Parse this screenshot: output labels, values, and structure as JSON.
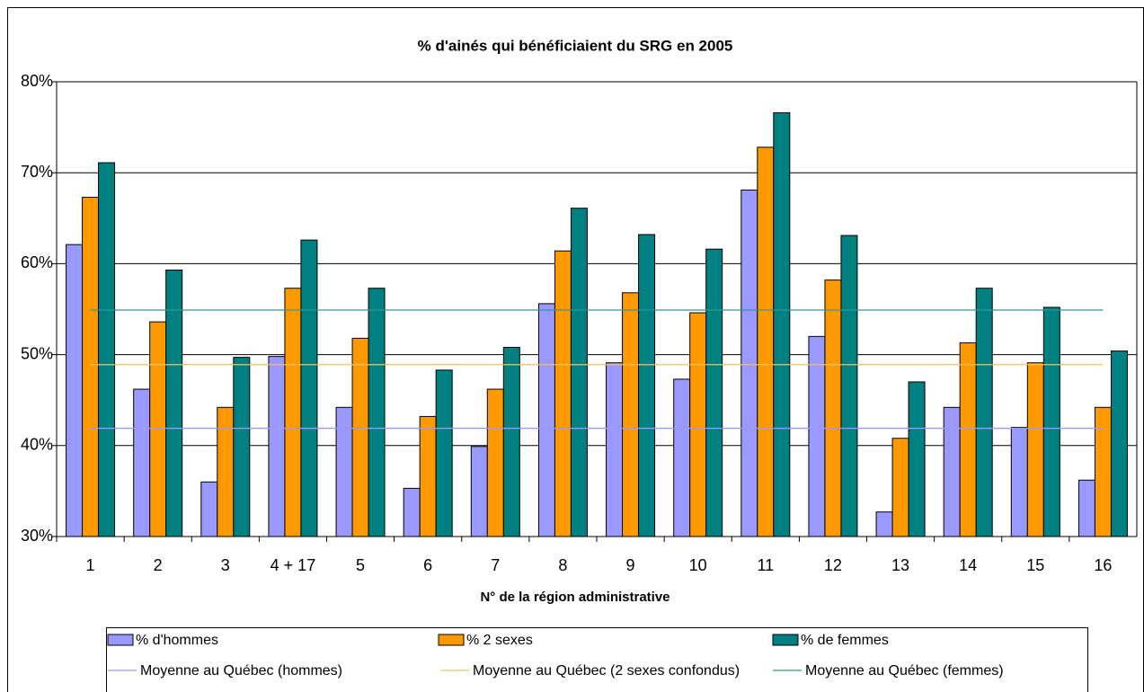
{
  "chart_data": {
    "type": "bar",
    "title": "% d'ainés qui bénéficiaient du SRG en 2005",
    "x_label": "N° de la région administrative",
    "categories": [
      "1",
      "2",
      "3",
      "4 + 17",
      "5",
      "6",
      "7",
      "8",
      "9",
      "10",
      "11",
      "12",
      "13",
      "14",
      "15",
      "16"
    ],
    "series": [
      {
        "name": "% d'hommes",
        "color": "#9999ff",
        "values": [
          62.1,
          46.2,
          36,
          49.8,
          44.2,
          35.3,
          39.9,
          55.6,
          49.1,
          47.3,
          68.1,
          52,
          32.7,
          44.2,
          42,
          36.2
        ]
      },
      {
        "name": "% 2 sexes",
        "color": "#ff9900",
        "values": [
          67.3,
          53.6,
          44.2,
          57.3,
          51.8,
          43.2,
          46.2,
          61.4,
          56.8,
          54.6,
          72.8,
          58.2,
          40.8,
          51.3,
          49.1,
          44.2
        ]
      },
      {
        "name": "% de femmes",
        "color": "#008080",
        "values": [
          71.1,
          59.3,
          49.7,
          62.6,
          57.3,
          48.3,
          50.8,
          66.1,
          63.2,
          61.6,
          76.6,
          63.1,
          47,
          57.3,
          55.2,
          50.4
        ]
      }
    ],
    "reference_lines": [
      {
        "name": "Moyenne au Québec (hommes)",
        "color": "#9999ff",
        "value": 41.9
      },
      {
        "name": "Moyenne au Québec (2 sexes confondus)",
        "color": "#f5c060",
        "value": 48.9
      },
      {
        "name": "Moyenne au Québec (femmes)",
        "color": "#2a9a9a",
        "value": 54.9
      }
    ],
    "ylim": [
      30,
      80
    ],
    "yticks": [
      {
        "value": 30,
        "label": "30%"
      },
      {
        "value": 40,
        "label": "40%"
      },
      {
        "value": 50,
        "label": "50%"
      },
      {
        "value": 60,
        "label": "60%"
      },
      {
        "value": 70,
        "label": "70%"
      },
      {
        "value": 80,
        "label": "80%"
      }
    ],
    "grid": true,
    "legend": "bottom"
  }
}
